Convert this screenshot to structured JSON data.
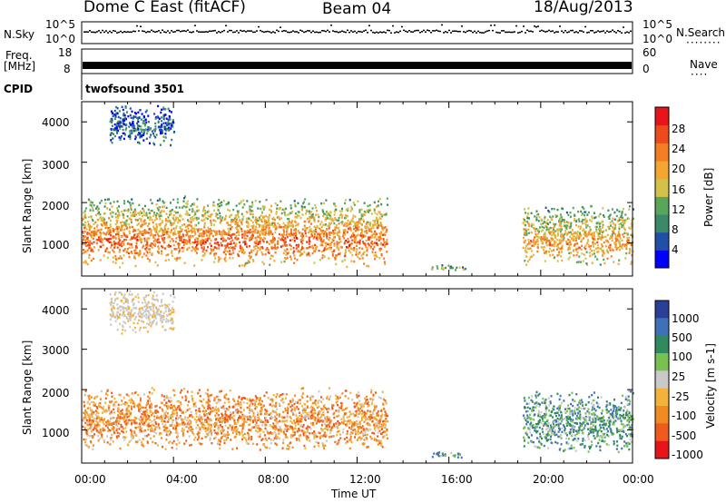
{
  "header": {
    "title": "Dome C East (fitACF)",
    "beam": "Beam 04",
    "date": "18/Aug/2013"
  },
  "strips": {
    "nsky": {
      "label": "N.Sky",
      "tick_top": "10^5",
      "tick_bottom": "10^0"
    },
    "nsearch": {
      "label": "N.Search",
      "tick_top": "10^5",
      "tick_bottom": "10^0"
    },
    "freq": {
      "label_line1": "Freq.",
      "label_line2": "[MHz]",
      "tick_top": "18",
      "tick_bottom": "8"
    },
    "nave": {
      "label": "Nave",
      "tick_top": "60",
      "tick_bottom": "0"
    },
    "cpid": {
      "label": "CPID",
      "program": "twofsound 3501"
    }
  },
  "colors": {
    "power_scale": [
      "#0000ff",
      "#1f4fa6",
      "#3a8a6a",
      "#58a65a",
      "#d2c24a",
      "#f5a531",
      "#f47c22",
      "#ee4a1c",
      "#e8141a"
    ],
    "velocity_scale": [
      "#2a3f9a",
      "#3e71b8",
      "#2f8a5f",
      "#78c04f",
      "#c9c9c9",
      "#f5b23a",
      "#f08a23",
      "#ee5b1d",
      "#e8141a"
    ]
  },
  "chart_data": [
    {
      "type": "heatmap",
      "name": "power",
      "ylabel": "Slant Range [km]",
      "ylim": [
        180,
        4500
      ],
      "yticks": [
        1000,
        2000,
        3000,
        4000
      ],
      "xlabel": "Time UT",
      "xlim": [
        0,
        24
      ],
      "xticks": [
        "00:00",
        "04:00",
        "08:00",
        "12:00",
        "16:00",
        "20:00",
        "00:00"
      ],
      "colorbar": {
        "label": "Power [dB]",
        "range": [
          0,
          32
        ],
        "ticks": [
          "4",
          "8",
          "12",
          "16",
          "20",
          "24",
          "28"
        ]
      },
      "echo_regions": [
        {
          "t": [
            0.0,
            13.3
          ],
          "r": [
            400,
            2200
          ],
          "core_power": 26
        },
        {
          "t": [
            15.2,
            16.7
          ],
          "r": [
            320,
            480
          ],
          "core_power": 14
        },
        {
          "t": [
            19.2,
            24.0
          ],
          "r": [
            450,
            2000
          ],
          "core_power": 22
        },
        {
          "t": [
            1.2,
            4.0
          ],
          "r": [
            3400,
            4500
          ],
          "core_power": 6
        }
      ]
    },
    {
      "type": "heatmap",
      "name": "velocity",
      "ylabel": "Slant Range [km]",
      "ylim": [
        180,
        4500
      ],
      "yticks": [
        1000,
        2000,
        3000,
        4000
      ],
      "xlabel": "Time UT",
      "xlim": [
        0,
        24
      ],
      "xticks": [
        "00:00",
        "04:00",
        "08:00",
        "12:00",
        "16:00",
        "20:00",
        "00:00"
      ],
      "colorbar": {
        "label": "Velocity [m s-1]",
        "ticks": [
          "1000",
          "500",
          "100",
          "25",
          "-25",
          "-100",
          "-500",
          "-1000"
        ]
      },
      "echo_regions": [
        {
          "t": [
            0.0,
            13.3
          ],
          "r": [
            500,
            2100
          ],
          "core_velocity": -300
        },
        {
          "t": [
            15.2,
            16.7
          ],
          "r": [
            320,
            480
          ],
          "core_velocity": 60
        },
        {
          "t": [
            19.2,
            24.0
          ],
          "r": [
            450,
            2000
          ],
          "core_velocity": 80
        },
        {
          "t": [
            1.2,
            4.0
          ],
          "r": [
            3400,
            4500
          ],
          "core_velocity": -30
        }
      ]
    }
  ]
}
